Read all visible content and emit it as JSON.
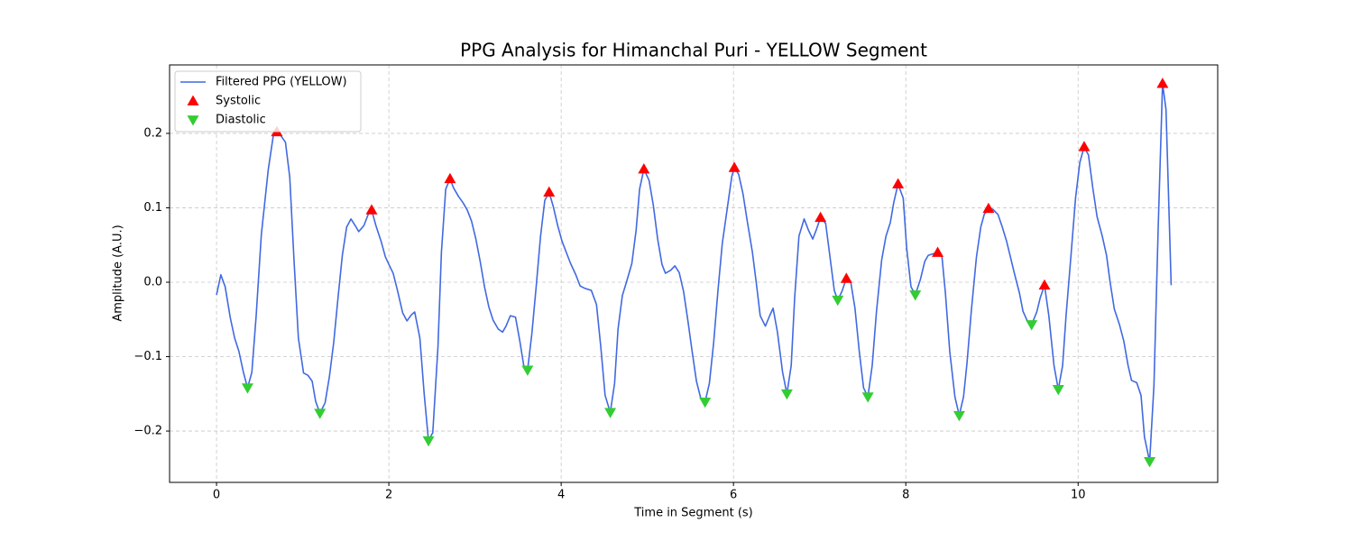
{
  "chart_data": {
    "type": "line",
    "title": "PPG Analysis for Himanchal Puri - YELLOW Segment",
    "x_label": "Time in Segment (s)",
    "y_label": "Amplitude (A.U.)",
    "xlim": [
      -0.545,
      11.62
    ],
    "ylim": [
      -0.269,
      0.292
    ],
    "xticks": [
      0,
      2,
      4,
      6,
      8,
      10
    ],
    "yticks": [
      {
        "value": -0.2,
        "label": "−0.2"
      },
      {
        "value": -0.1,
        "label": "−0.1"
      },
      {
        "value": 0,
        "label": "0.0"
      },
      0.1,
      0.2
    ],
    "grid": true,
    "legend": "upper-left",
    "series": [
      {
        "name": "Filtered PPG (YELLOW)",
        "type": "line",
        "color": "#4169e1",
        "x": [
          0,
          0.05,
          0.1,
          0.16,
          0.21,
          0.26,
          0.31,
          0.36,
          0.41,
          0.46,
          0.52,
          0.6,
          0.66,
          0.7,
          0.74,
          0.8,
          0.85,
          0.9,
          0.95,
          1.01,
          1.06,
          1.11,
          1.15,
          1.2,
          1.26,
          1.31,
          1.36,
          1.41,
          1.46,
          1.51,
          1.56,
          1.61,
          1.65,
          1.71,
          1.76,
          1.8,
          1.85,
          1.91,
          1.96,
          2.0,
          2.05,
          2.1,
          2.16,
          2.21,
          2.26,
          2.3,
          2.36,
          2.41,
          2.46,
          2.51,
          2.57,
          2.61,
          2.66,
          2.71,
          2.75,
          2.81,
          2.86,
          2.91,
          2.96,
          3.01,
          3.06,
          3.11,
          3.16,
          3.21,
          3.27,
          3.32,
          3.36,
          3.41,
          3.47,
          3.52,
          3.57,
          3.61,
          3.66,
          3.71,
          3.76,
          3.81,
          3.86,
          3.91,
          3.96,
          4.01,
          4.06,
          4.11,
          4.17,
          4.22,
          4.27,
          4.35,
          4.41,
          4.46,
          4.51,
          4.57,
          4.62,
          4.66,
          4.71,
          4.76,
          4.82,
          4.87,
          4.91,
          4.96,
          5.02,
          5.07,
          5.12,
          5.17,
          5.21,
          5.27,
          5.32,
          5.37,
          5.42,
          5.47,
          5.52,
          5.57,
          5.62,
          5.67,
          5.72,
          5.77,
          5.82,
          5.87,
          5.93,
          5.98,
          6.01,
          6.06,
          6.11,
          6.16,
          6.22,
          6.27,
          6.31,
          6.37,
          6.42,
          6.46,
          6.51,
          6.57,
          6.62,
          6.67,
          6.71,
          6.76,
          6.82,
          6.87,
          6.92,
          6.96,
          7.01,
          7.07,
          7.12,
          7.17,
          7.21,
          7.26,
          7.31,
          7.36,
          7.41,
          7.46,
          7.51,
          7.56,
          7.61,
          7.66,
          7.72,
          7.77,
          7.82,
          7.86,
          7.91,
          7.97,
          8.01,
          8.06,
          8.11,
          8.17,
          8.22,
          8.26,
          8.31,
          8.37,
          8.42,
          8.46,
          8.51,
          8.57,
          8.62,
          8.67,
          8.71,
          8.76,
          8.82,
          8.87,
          8.91,
          8.96,
          9.01,
          9.07,
          9.12,
          9.17,
          9.21,
          9.26,
          9.32,
          9.36,
          9.41,
          9.46,
          9.52,
          9.56,
          9.61,
          9.66,
          9.72,
          9.77,
          9.82,
          9.86,
          9.92,
          9.97,
          10.02,
          10.07,
          10.12,
          10.17,
          10.22,
          10.28,
          10.33,
          10.37,
          10.42,
          10.48,
          10.53,
          10.58,
          10.62,
          10.68,
          10.73,
          10.77,
          10.83,
          10.88,
          10.93,
          10.98,
          11.02,
          11.08
        ],
        "values": [
          -0.017,
          0.01,
          -0.006,
          -0.048,
          -0.075,
          -0.093,
          -0.12,
          -0.142,
          -0.121,
          -0.045,
          0.064,
          0.151,
          0.198,
          0.202,
          0.198,
          0.188,
          0.141,
          0.028,
          -0.075,
          -0.122,
          -0.125,
          -0.133,
          -0.16,
          -0.176,
          -0.162,
          -0.127,
          -0.081,
          -0.021,
          0.036,
          0.074,
          0.085,
          0.076,
          0.068,
          0.076,
          0.091,
          0.097,
          0.076,
          0.055,
          0.034,
          0.024,
          0.012,
          -0.011,
          -0.041,
          -0.052,
          -0.044,
          -0.04,
          -0.075,
          -0.15,
          -0.213,
          -0.202,
          -0.087,
          0.04,
          0.125,
          0.139,
          0.127,
          0.115,
          0.107,
          0.097,
          0.082,
          0.058,
          0.028,
          -0.006,
          -0.033,
          -0.051,
          -0.063,
          -0.067,
          -0.059,
          -0.045,
          -0.047,
          -0.079,
          -0.115,
          -0.118,
          -0.069,
          -0.006,
          0.061,
          0.11,
          0.121,
          0.101,
          0.076,
          0.055,
          0.04,
          0.025,
          0.01,
          -0.005,
          -0.008,
          -0.011,
          -0.03,
          -0.087,
          -0.152,
          -0.175,
          -0.136,
          -0.063,
          -0.018,
          0.001,
          0.025,
          0.07,
          0.125,
          0.152,
          0.137,
          0.103,
          0.058,
          0.024,
          0.012,
          0.016,
          0.022,
          0.013,
          -0.012,
          -0.051,
          -0.093,
          -0.133,
          -0.156,
          -0.161,
          -0.136,
          -0.081,
          -0.011,
          0.052,
          0.101,
          0.142,
          0.154,
          0.145,
          0.119,
          0.082,
          0.04,
          -0.006,
          -0.045,
          -0.059,
          -0.045,
          -0.035,
          -0.067,
          -0.121,
          -0.15,
          -0.112,
          -0.021,
          0.062,
          0.085,
          0.07,
          0.058,
          0.07,
          0.087,
          0.079,
          0.034,
          -0.011,
          -0.024,
          -0.012,
          0.005,
          0.001,
          -0.035,
          -0.093,
          -0.142,
          -0.154,
          -0.112,
          -0.039,
          0.03,
          0.062,
          0.08,
          0.107,
          0.132,
          0.113,
          0.046,
          -0.006,
          -0.017,
          0.004,
          0.028,
          0.036,
          0.038,
          0.04,
          0.034,
          -0.015,
          -0.093,
          -0.154,
          -0.179,
          -0.154,
          -0.109,
          -0.039,
          0.034,
          0.074,
          0.091,
          0.099,
          0.098,
          0.091,
          0.074,
          0.055,
          0.036,
          0.012,
          -0.015,
          -0.039,
          -0.052,
          -0.057,
          -0.04,
          -0.021,
          -0.004,
          -0.045,
          -0.112,
          -0.144,
          -0.112,
          -0.045,
          0.04,
          0.113,
          0.161,
          0.182,
          0.171,
          0.127,
          0.088,
          0.062,
          0.036,
          0.001,
          -0.036,
          -0.057,
          -0.079,
          -0.112,
          -0.132,
          -0.135,
          -0.152,
          -0.208,
          -0.241,
          -0.139,
          0.076,
          0.267,
          0.232,
          -0.004
        ]
      },
      {
        "name": "Systolic",
        "type": "scatter",
        "marker": "triangle-up",
        "color": "#ff0000",
        "x": [
          0.7,
          1.8,
          2.71,
          3.86,
          4.96,
          6.01,
          7.01,
          7.31,
          7.91,
          8.37,
          8.96,
          9.61,
          10.07,
          10.98
        ],
        "values": [
          0.202,
          0.097,
          0.139,
          0.121,
          0.152,
          0.154,
          0.087,
          0.005,
          0.132,
          0.04,
          0.099,
          -0.004,
          0.182,
          0.267
        ]
      },
      {
        "name": "Diastolic",
        "type": "scatter",
        "marker": "triangle-down",
        "color": "#32cd32",
        "x": [
          0.36,
          1.2,
          2.46,
          3.61,
          4.57,
          5.67,
          6.62,
          7.21,
          7.56,
          8.11,
          8.62,
          9.46,
          9.77,
          10.83
        ],
        "values": [
          -0.142,
          -0.176,
          -0.213,
          -0.118,
          -0.175,
          -0.161,
          -0.15,
          -0.024,
          -0.154,
          -0.017,
          -0.179,
          -0.057,
          -0.144,
          -0.241
        ]
      }
    ]
  }
}
